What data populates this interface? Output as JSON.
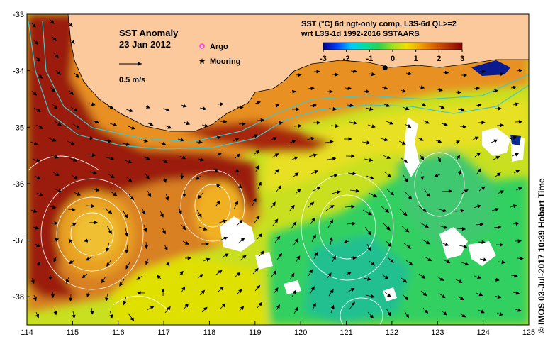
{
  "map": {
    "title": "SST Anomaly",
    "date": "23 Jan 2012",
    "scale_arrow_label": "0.5 m/s",
    "legend": {
      "argo_label": "Argo",
      "mooring_label": "Mooring",
      "argo_color": "#ff33ff",
      "mooring_color": "#000000"
    },
    "colorbar": {
      "title_line1": "SST (°C) 6d ngt-only comp, L3S-6d QL>=2",
      "title_line2": "wrt L3S-1d 1992-2016 SSTAARS",
      "ticks": [
        "-3",
        "-2",
        "-1",
        "0",
        "1",
        "2",
        "3"
      ],
      "colors": [
        "#00008b",
        "#0040ff",
        "#00c8ff",
        "#00e0a0",
        "#30d050",
        "#a0e020",
        "#f0e000",
        "#f0a000",
        "#d86000",
        "#b03000",
        "#8b0000"
      ]
    },
    "credit": "© IMOS 03-Jul-2017 10:39 Hobart Time",
    "x_axis": {
      "ticks": [
        "114",
        "115",
        "116",
        "117",
        "118",
        "119",
        "120",
        "121",
        "122",
        "123",
        "124",
        "125"
      ],
      "range": [
        114,
        125
      ]
    },
    "y_axis": {
      "ticks": [
        "-33",
        "-34",
        "-35",
        "-36",
        "-37",
        "-38"
      ],
      "range": [
        -38.5,
        -33
      ]
    },
    "land_color": "#fbc99b",
    "mooring": {
      "lon": 121.85,
      "lat": -33.95
    }
  }
}
